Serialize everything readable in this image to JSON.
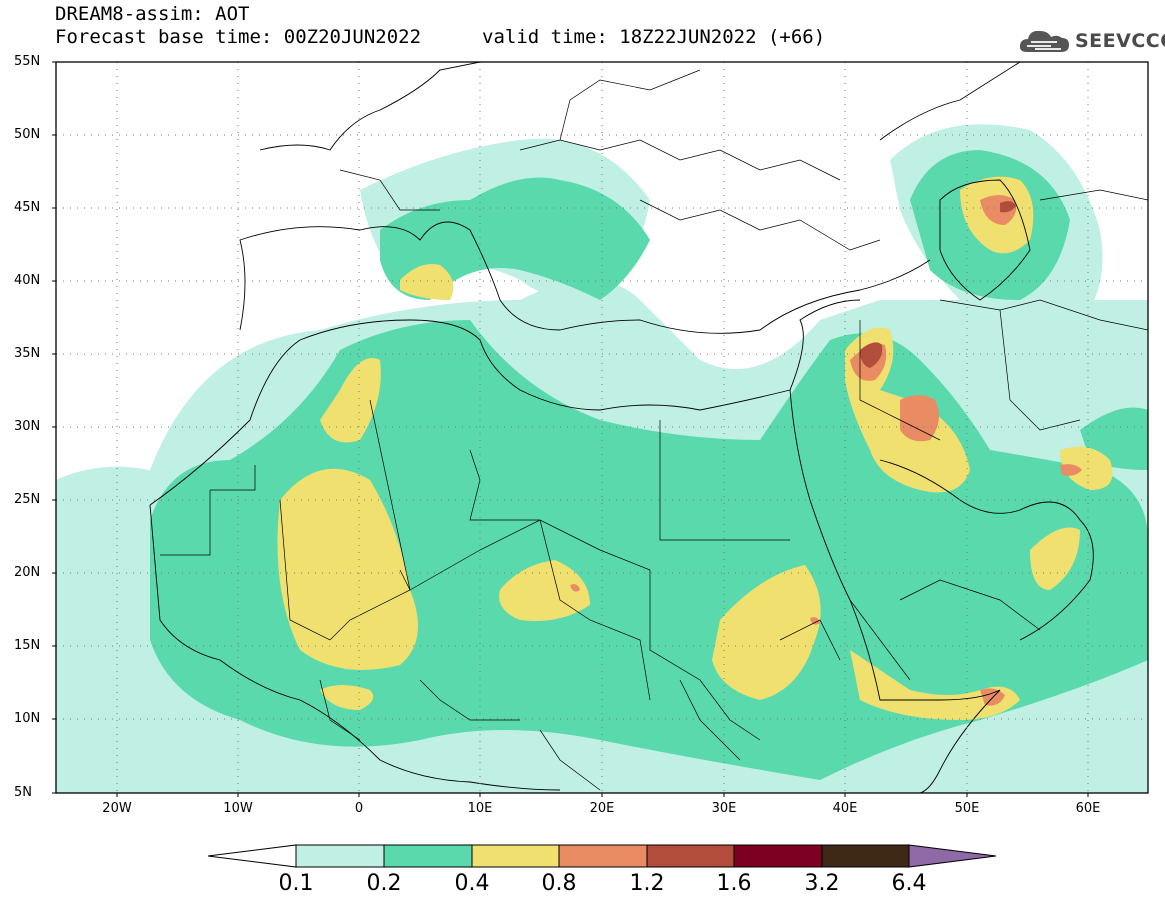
{
  "header": {
    "title_line1": "DREAM8-assim: AOT",
    "title_line2": "Forecast base time: 00Z20JUN2022",
    "valid_time": "valid time: 18Z22JUN2022 (+66)",
    "logo_text": "SEEVCCC"
  },
  "map": {
    "region": "North Africa, Mediterranean, Middle East",
    "lon_range": [
      -25,
      65
    ],
    "lat_range": [
      5,
      55
    ],
    "lat_ticks": [
      "55N",
      "50N",
      "45N",
      "40N",
      "35N",
      "30N",
      "25N",
      "20N",
      "15N",
      "10N",
      "5N"
    ],
    "lon_ticks": [
      "20W",
      "10W",
      "0",
      "10E",
      "20E",
      "30E",
      "40E",
      "50E",
      "60E"
    ],
    "variable": "Aerosol Optical Thickness",
    "dust_hotspots": [
      {
        "area": "Northern Iraq / Syria",
        "level": "1.2-1.6"
      },
      {
        "area": "Southern Iraq / Kuwait",
        "level": "0.8-1.2"
      },
      {
        "area": "Caspian Sea north coast",
        "level": "0.8-1.6"
      },
      {
        "area": "Gulf of Aden / Somalia",
        "level": "0.8-1.2"
      },
      {
        "area": "Central Sahara (Chad)",
        "level": "0.8-1.2"
      },
      {
        "area": "Southern Iran coast",
        "level": "0.8-1.2"
      }
    ]
  },
  "colorbar": {
    "labels": [
      "0.1",
      "0.2",
      "0.4",
      "0.8",
      "1.2",
      "1.6",
      "3.2",
      "6.4"
    ],
    "colors": [
      "#ffffff",
      "#bff0e3",
      "#5ad9ad",
      "#f0e070",
      "#e98c63",
      "#b24c3b",
      "#7d0022",
      "#3d2916",
      "#8f69a6"
    ]
  },
  "colors": {
    "c1": "#bff0e3",
    "c2": "#5ad9ad",
    "c3": "#f0e070",
    "c4": "#e98c63",
    "c5": "#b24c3b",
    "c6": "#7d0022"
  }
}
